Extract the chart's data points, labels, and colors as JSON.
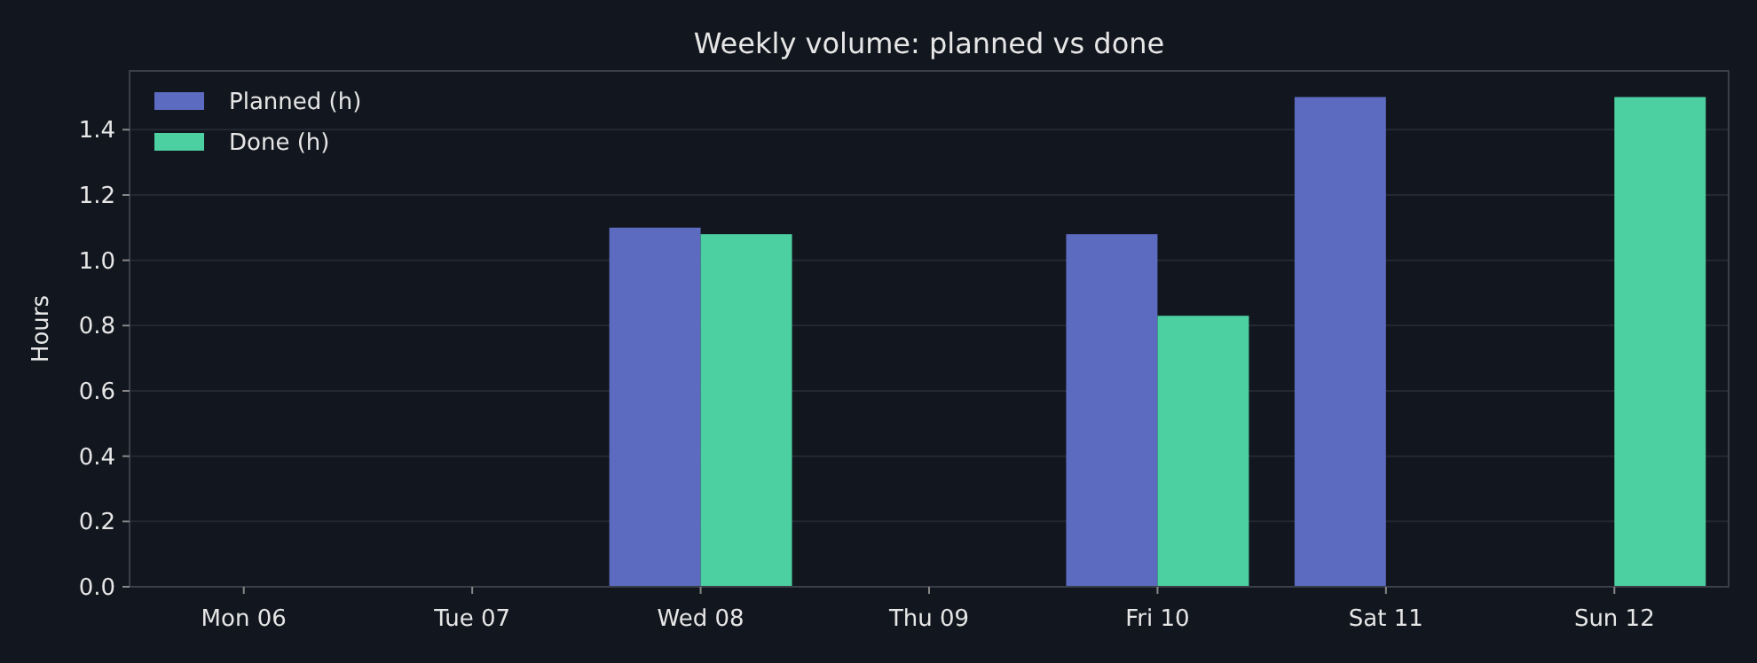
{
  "chart_data": {
    "type": "bar",
    "title": "Weekly volume: planned vs done",
    "ylabel": "Hours",
    "categories": [
      "Mon 06",
      "Tue 07",
      "Wed 08",
      "Thu 09",
      "Fri 10",
      "Sat 11",
      "Sun 12"
    ],
    "series": [
      {
        "name": "Planned (h)",
        "color": "#5c6bc0",
        "values": [
          0,
          0,
          1.1,
          0,
          1.08,
          1.5,
          0
        ]
      },
      {
        "name": "Done (h)",
        "color": "#4dd0a1",
        "values": [
          0,
          0,
          1.08,
          0,
          0.83,
          0,
          1.5
        ]
      }
    ],
    "ylim": [
      0,
      1.58
    ],
    "yticks": [
      {
        "value": 0,
        "label": "0.0"
      },
      {
        "value": 0.2,
        "label": "0.2"
      },
      {
        "value": 0.4,
        "label": "0.4"
      },
      {
        "value": 0.6,
        "label": "0.6"
      },
      {
        "value": 0.8,
        "label": "0.8"
      },
      {
        "value": 1.0,
        "label": "1.0"
      },
      {
        "value": 1.2,
        "label": "1.2"
      },
      {
        "value": 1.4,
        "label": "1.4"
      }
    ],
    "grid": "y",
    "legend": "top left"
  }
}
